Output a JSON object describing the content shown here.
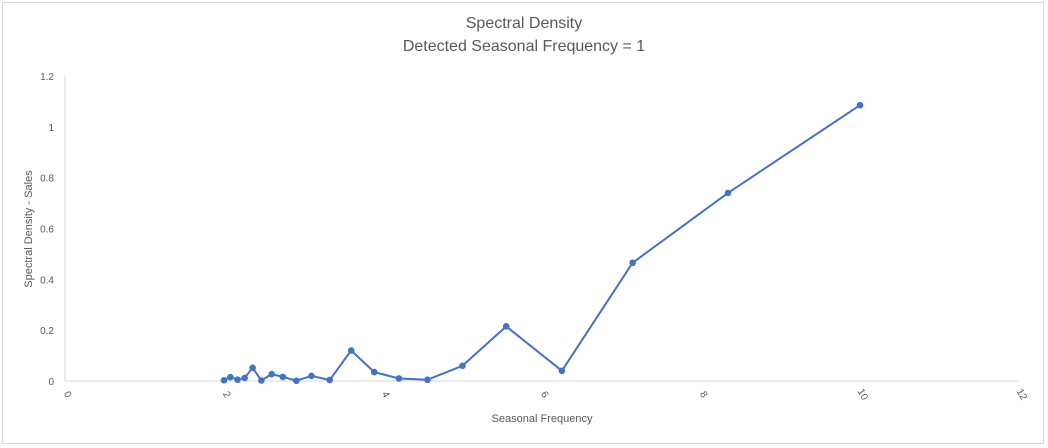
{
  "chart_data": {
    "type": "scatter",
    "title": "Spectral Density",
    "subtitle": "Detected Seasonal Frequency = 1",
    "xlabel": "Seasonal Frequency",
    "ylabel": "Spectral Density - Sales",
    "xlim": [
      0,
      12
    ],
    "ylim": [
      0,
      1.2
    ],
    "x_ticks": [
      "0",
      "2",
      "4",
      "6",
      "8",
      "10",
      "12"
    ],
    "y_ticks": [
      "0",
      "0.2",
      "0.4",
      "0.6",
      "0.8",
      "1",
      "1.2"
    ],
    "grid": false,
    "legend": "none",
    "color": "#4472c4",
    "series": [
      {
        "x": [
          2.0,
          2.08,
          2.17,
          2.26,
          2.36,
          2.47,
          2.6,
          2.74,
          2.91,
          3.1,
          3.33,
          3.6,
          3.89,
          4.2,
          4.56,
          5.0,
          5.55,
          6.25,
          7.14,
          8.34,
          10.0
        ],
        "y": [
          0.003,
          0.015,
          0.005,
          0.012,
          0.052,
          0.002,
          0.027,
          0.016,
          0.001,
          0.02,
          0.004,
          0.12,
          0.035,
          0.01,
          0.005,
          0.06,
          0.215,
          0.04,
          0.465,
          0.74,
          1.085
        ]
      }
    ]
  }
}
